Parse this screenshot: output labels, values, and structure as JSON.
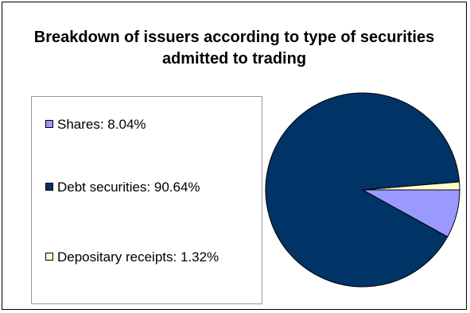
{
  "chart_data": {
    "type": "pie",
    "title": "Breakdown of issuers according to type of securities admitted to trading",
    "slices": [
      {
        "label": "Shares",
        "value": 8.04,
        "legend_text": "Shares: 8.04%",
        "color": "#9999FF"
      },
      {
        "label": "Debt securities",
        "value": 90.64,
        "legend_text": "Debt securities: 90.64%",
        "color": "#003366"
      },
      {
        "label": "Depositary receipts",
        "value": 1.32,
        "legend_text": "Depositary receipts: 1.32%",
        "color": "#FFFFCC"
      }
    ],
    "legend_position": "left",
    "start_angle": "3 o'clock, counterclockwise"
  }
}
